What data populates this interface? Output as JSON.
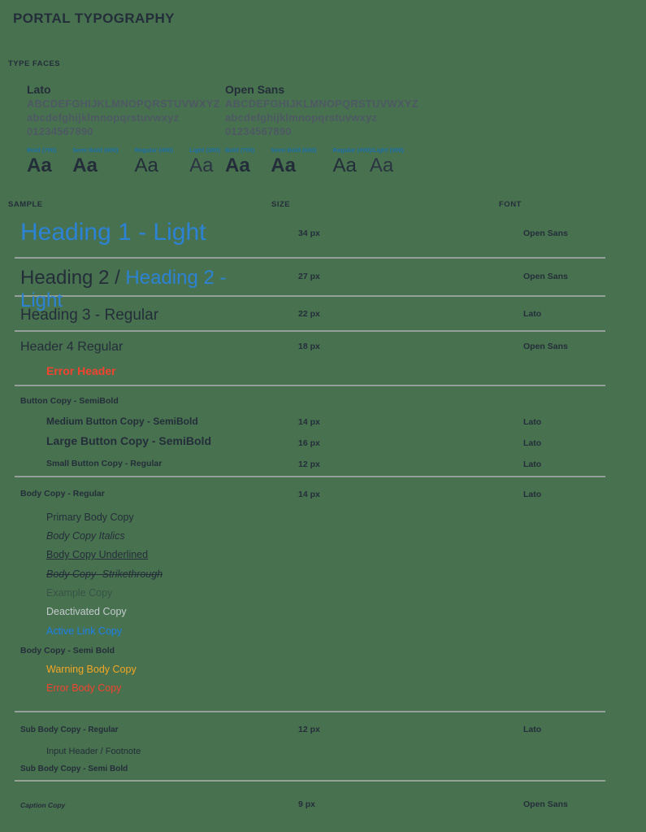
{
  "page": {
    "title": "PORTAL TYPOGRAPHY"
  },
  "colors": {
    "background_green": "#48714F",
    "text_dark": "#242E3A",
    "alphabet_gray": "#4D5963",
    "weight_label_blue": "#1C6FA8",
    "heading_light_blue": "#2C83D6",
    "active_link_blue": "#1B80EA",
    "error_red": "#F2432F",
    "warning_orange": "#F5A623",
    "deactivated_gray": "#C4CCCF",
    "divider_gray": "#95A09A"
  },
  "typefaces": {
    "section_title": "TYPE FACES",
    "sample_text": "Aa",
    "fonts": [
      {
        "name": "Lato",
        "uppercase": "ABCDEFGHIJKLMNOPQRSTUVWXYZ",
        "lowercase": "abcdefghijklmnopqrstuvwxyz",
        "digits": "01234567890",
        "weights": [
          "Bold (700)",
          "Semi Bold (600)",
          "Regular (400)",
          "Light (300)"
        ]
      },
      {
        "name": "Open Sans",
        "uppercase": "ABCDEFGHIJKLMNOPQRSTUVWXYZ",
        "lowercase": "abcdefghijklmnopqrstuvwxyz",
        "digits": "01234567890",
        "weights": [
          "Bold (700)",
          "Semi Bold (600)",
          "Regular (400)/Light (300)"
        ]
      }
    ]
  },
  "table": {
    "headers": {
      "sample": "SAMPLE",
      "size": "SIZE",
      "font": "FONT"
    },
    "h1": {
      "sample": "Heading 1 - Light",
      "size": "34 px",
      "font": "Open Sans"
    },
    "h2": {
      "sample_prefix": "Heading 2 / ",
      "sample_light": "Heading 2 - Light",
      "size": "27 px",
      "font": "Open Sans"
    },
    "h3": {
      "sample": "Heading 3 - Regular",
      "size": "22 px",
      "font": "Lato"
    },
    "h4": {
      "sample": "Header 4 Regular",
      "error_sample": "Error Header",
      "size": "18 px",
      "font": "Open Sans"
    },
    "button_group": {
      "label": "Button Copy - SemiBold",
      "medium": {
        "sample": "Medium Button Copy - SemiBold",
        "size": "14 px",
        "font": "Lato"
      },
      "large": {
        "sample": "Large Button Copy - SemiBold",
        "size": "16 px",
        "font": "Lato"
      },
      "small": {
        "sample": "Small Button Copy - Regular",
        "size": "12 px",
        "font": "Lato"
      }
    },
    "body_group": {
      "label": "Body Copy - Regular",
      "size": "14 px",
      "font": "Lato",
      "primary": "Primary Body Copy",
      "italics": "Body Copy Italics",
      "underlined": "Body Copy Underlined",
      "strikethrough": "Body Copy- Strikethrough",
      "example": "Example Copy",
      "deactivated": "Deactivated Copy",
      "active_link": "Active Link Copy",
      "semibold_label": "Body Copy - Semi Bold",
      "warning": "Warning Body Copy",
      "error": "Error Body Copy"
    },
    "sub_group": {
      "label": "Sub Body Copy - Regular",
      "size": "12 px",
      "font": "Lato",
      "input_header": "Input Header / Footnote",
      "semibold_label": "Sub Body Copy - Semi Bold"
    },
    "caption": {
      "sample": "Caption Copy",
      "size": "9 px",
      "font": "Open Sans"
    }
  }
}
